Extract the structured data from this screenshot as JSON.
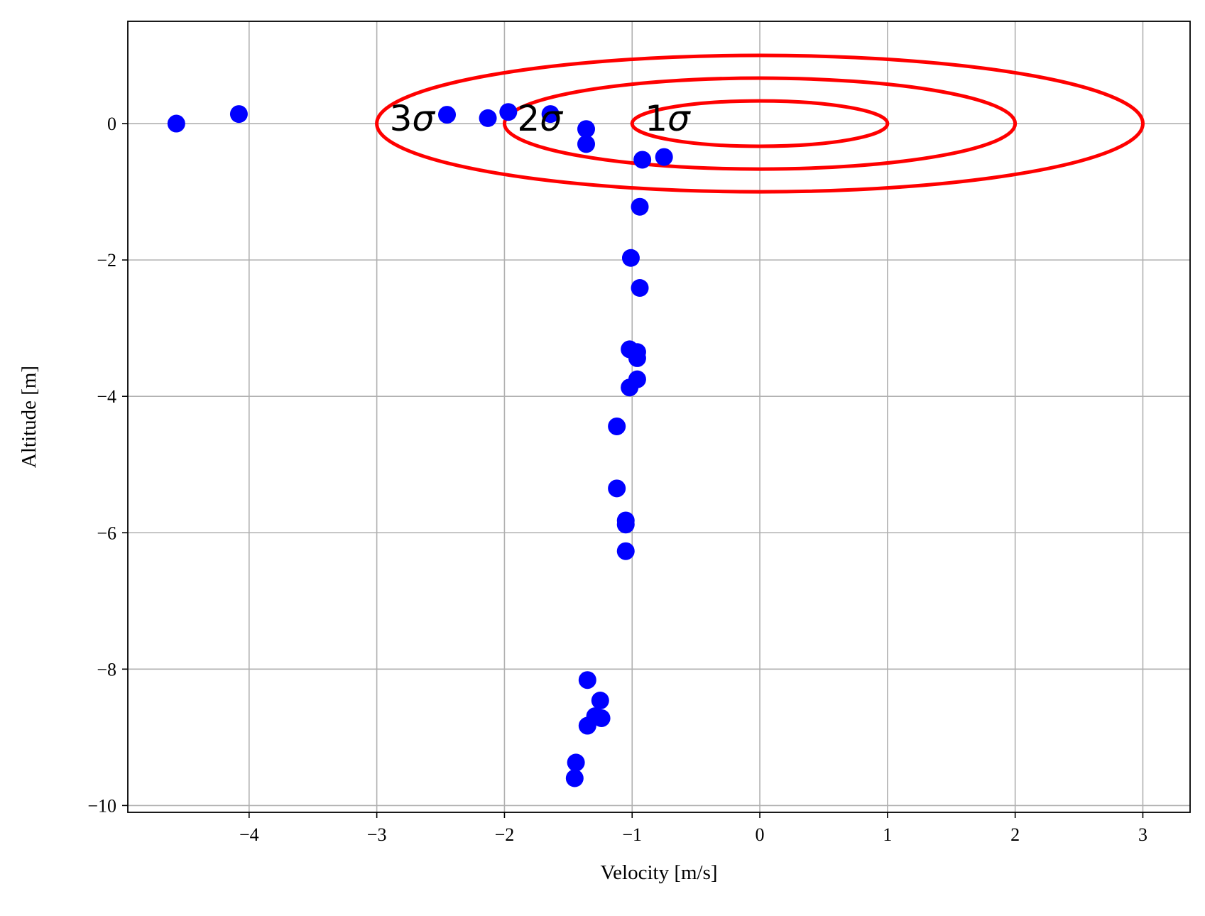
{
  "chart_data": {
    "type": "scatter",
    "xlabel": "Velocity [m/s]",
    "ylabel": "Altitude [m]",
    "xlim": [
      -4.95,
      3.37
    ],
    "ylim": [
      -10.1,
      1.5
    ],
    "xticks": [
      -4,
      -3,
      -2,
      -1,
      0,
      1,
      2,
      3
    ],
    "yticks": [
      0,
      -2,
      -4,
      -6,
      -8,
      -10
    ],
    "xtick_labels": [
      "−4",
      "−3",
      "−2",
      "−1",
      "0",
      "1",
      "2",
      "3"
    ],
    "ytick_labels": [
      "0",
      "−2",
      "−4",
      "−6",
      "−8",
      "−10"
    ],
    "grid": true,
    "point_color": "#0000ff",
    "ellipse_color": "#ff0000",
    "points": [
      {
        "x": -4.57,
        "y": 0.0
      },
      {
        "x": -4.08,
        "y": 0.14
      },
      {
        "x": -2.45,
        "y": 0.13
      },
      {
        "x": -2.13,
        "y": 0.08
      },
      {
        "x": -1.97,
        "y": 0.17
      },
      {
        "x": -1.64,
        "y": 0.14
      },
      {
        "x": -1.36,
        "y": -0.08
      },
      {
        "x": -1.36,
        "y": -0.3
      },
      {
        "x": -0.92,
        "y": -0.53
      },
      {
        "x": -0.75,
        "y": -0.49
      },
      {
        "x": -0.94,
        "y": -1.22
      },
      {
        "x": -1.01,
        "y": -1.97
      },
      {
        "x": -0.94,
        "y": -2.41
      },
      {
        "x": -1.02,
        "y": -3.31
      },
      {
        "x": -0.96,
        "y": -3.35
      },
      {
        "x": -0.96,
        "y": -3.44
      },
      {
        "x": -0.96,
        "y": -3.75
      },
      {
        "x": -1.02,
        "y": -3.87
      },
      {
        "x": -1.12,
        "y": -4.44
      },
      {
        "x": -1.12,
        "y": -5.35
      },
      {
        "x": -1.05,
        "y": -5.82
      },
      {
        "x": -1.05,
        "y": -5.88
      },
      {
        "x": -1.05,
        "y": -6.27
      },
      {
        "x": -1.35,
        "y": -8.16
      },
      {
        "x": -1.25,
        "y": -8.46
      },
      {
        "x": -1.29,
        "y": -8.69
      },
      {
        "x": -1.24,
        "y": -8.72
      },
      {
        "x": -1.35,
        "y": -8.83
      },
      {
        "x": -1.44,
        "y": -9.37
      },
      {
        "x": -1.45,
        "y": -9.6
      }
    ],
    "ellipses": [
      {
        "label": "1σ",
        "cx": 0,
        "cy": 0,
        "rx": 1,
        "ry": 0.333
      },
      {
        "label": "2σ",
        "cx": 0,
        "cy": 0,
        "rx": 2,
        "ry": 0.667
      },
      {
        "label": "3σ",
        "cx": 0,
        "cy": 0,
        "rx": 3,
        "ry": 1.0
      }
    ],
    "annotations": [
      {
        "text": "1σ",
        "x": -0.9,
        "y": 0.0
      },
      {
        "text": "2σ",
        "x": -1.9,
        "y": 0.0
      },
      {
        "text": "3σ",
        "x": -2.9,
        "y": 0.0
      }
    ]
  }
}
